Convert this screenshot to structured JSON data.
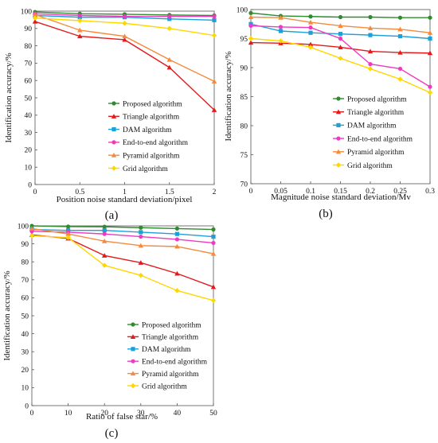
{
  "chart_data": [
    {
      "type": "line",
      "panel_label": "(a)",
      "xlabel": "Position noise standard deviation/pixel",
      "ylabel": "Identification accuracy/%",
      "xlim": [
        0,
        2
      ],
      "ylim": [
        0,
        100
      ],
      "xticks": [
        0,
        0.5,
        1,
        1.5,
        2
      ],
      "xtick_labels": [
        "0",
        "0.5",
        "1",
        "1.5",
        "2"
      ],
      "yticks": [
        0,
        10,
        20,
        30,
        40,
        50,
        60,
        70,
        80,
        90,
        100
      ],
      "ytick_labels": [
        "0",
        "10",
        "20",
        "30",
        "40",
        "50",
        "60",
        "70",
        "80",
        "90",
        "100"
      ],
      "grid": false,
      "legend_position": "lower-center",
      "x": [
        0,
        0.5,
        1,
        1.5,
        2
      ],
      "series": [
        {
          "name": "Proposed algorithm",
          "color": "#2e8b2e",
          "marker": "circle",
          "values": [
            99.5,
            98.5,
            98.2,
            97.8,
            97.5
          ]
        },
        {
          "name": "Triangle algorithm",
          "color": "#e31a1c",
          "marker": "triangle",
          "values": [
            94.0,
            85.5,
            83.5,
            67.5,
            43.0
          ]
        },
        {
          "name": "DAM algorithm",
          "color": "#1e9fd8",
          "marker": "square",
          "values": [
            97.5,
            96.5,
            96.5,
            95.5,
            94.8
          ]
        },
        {
          "name": "End-to-end algorithm",
          "color": "#ee3ac0",
          "marker": "circle",
          "values": [
            98.5,
            97.5,
            97.0,
            97.0,
            97.0
          ]
        },
        {
          "name": "Pyramid algorithm",
          "color": "#f58a3c",
          "marker": "triangle",
          "values": [
            98.0,
            89.0,
            85.5,
            72.0,
            59.5
          ]
        },
        {
          "name": "Grid algorithm",
          "color": "#ffd700",
          "marker": "diamond",
          "values": [
            96.0,
            94.5,
            93.0,
            90.0,
            86.0
          ]
        }
      ]
    },
    {
      "type": "line",
      "panel_label": "(b)",
      "xlabel": "Magnitude noise standard deviation/Mv",
      "ylabel": "Identification accuracy/%",
      "xlim": [
        0,
        0.3
      ],
      "ylim": [
        70,
        100
      ],
      "xticks": [
        0,
        0.05,
        0.1,
        0.15,
        0.2,
        0.25,
        0.3
      ],
      "xtick_labels": [
        "0",
        "0.05",
        "0.1",
        "0.15",
        "0.2",
        "0.25",
        "0.3"
      ],
      "yticks": [
        70,
        75,
        80,
        85,
        90,
        95,
        100
      ],
      "ytick_labels": [
        "70",
        "75",
        "80",
        "85",
        "90",
        "95",
        "100"
      ],
      "grid": false,
      "legend_position": "lower-right",
      "x": [
        0,
        0.05,
        0.1,
        0.15,
        0.2,
        0.25,
        0.3
      ],
      "series": [
        {
          "name": "Proposed algorithm",
          "color": "#2e8b2e",
          "marker": "circle",
          "values": [
            99.4,
            98.9,
            98.8,
            98.7,
            98.7,
            98.6,
            98.6
          ]
        },
        {
          "name": "Triangle algorithm",
          "color": "#e31a1c",
          "marker": "triangle",
          "values": [
            94.3,
            94.2,
            94.0,
            93.5,
            92.8,
            92.6,
            92.5
          ]
        },
        {
          "name": "DAM algorithm",
          "color": "#1e9fd8",
          "marker": "square",
          "values": [
            97.5,
            96.3,
            96.0,
            95.8,
            95.6,
            95.4,
            95.0
          ]
        },
        {
          "name": "End-to-end algorithm",
          "color": "#ee3ac0",
          "marker": "circle",
          "values": [
            97.2,
            97.0,
            96.9,
            95.0,
            90.6,
            89.8,
            86.7
          ]
        },
        {
          "name": "Pyramid algorithm",
          "color": "#f58a3c",
          "marker": "triangle",
          "values": [
            98.7,
            98.6,
            97.8,
            97.2,
            96.8,
            96.6,
            96.0
          ]
        },
        {
          "name": "Grid algorithm",
          "color": "#ffd700",
          "marker": "diamond",
          "values": [
            95.0,
            94.6,
            93.5,
            91.6,
            89.8,
            88.0,
            85.7
          ]
        }
      ]
    },
    {
      "type": "line",
      "panel_label": "(c)",
      "xlabel": "Ratio of false star/%",
      "ylabel": "Identification accuracy/%",
      "xlim": [
        0,
        50
      ],
      "ylim": [
        0,
        100
      ],
      "xticks": [
        0,
        10,
        20,
        30,
        40,
        50
      ],
      "xtick_labels": [
        "0",
        "10",
        "20",
        "30",
        "40",
        "50"
      ],
      "yticks": [
        0,
        10,
        20,
        30,
        40,
        50,
        60,
        70,
        80,
        90,
        100
      ],
      "ytick_labels": [
        "0",
        "10",
        "20",
        "30",
        "40",
        "50",
        "60",
        "70",
        "80",
        "90",
        "100"
      ],
      "grid": false,
      "legend_position": "lower-center",
      "x": [
        0,
        10,
        20,
        30,
        40,
        50
      ],
      "series": [
        {
          "name": "Proposed algorithm",
          "color": "#2e8b2e",
          "marker": "circle",
          "values": [
            100.0,
            99.6,
            99.5,
            99.0,
            98.5,
            98.0
          ]
        },
        {
          "name": "Triangle algorithm",
          "color": "#e31a1c",
          "marker": "triangle",
          "values": [
            95.0,
            93.0,
            83.5,
            79.5,
            73.5,
            66.0
          ]
        },
        {
          "name": "DAM algorithm",
          "color": "#1e9fd8",
          "marker": "square",
          "values": [
            98.0,
            97.5,
            97.5,
            96.5,
            95.5,
            94.0
          ]
        },
        {
          "name": "End-to-end algorithm",
          "color": "#ee3ac0",
          "marker": "circle",
          "values": [
            97.0,
            96.5,
            95.5,
            94.0,
            92.5,
            90.5
          ]
        },
        {
          "name": "Pyramid algorithm",
          "color": "#f58a3c",
          "marker": "triangle",
          "values": [
            98.5,
            95.5,
            91.5,
            89.0,
            88.5,
            84.5
          ]
        },
        {
          "name": "Grid algorithm",
          "color": "#ffd700",
          "marker": "diamond",
          "values": [
            94.5,
            93.5,
            78.0,
            72.5,
            64.0,
            58.5
          ]
        }
      ]
    }
  ]
}
